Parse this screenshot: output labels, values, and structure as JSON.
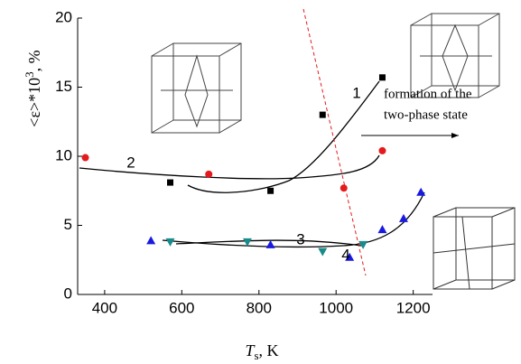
{
  "chart_data": {
    "type": "scatter",
    "x_label": {
      "main": "T",
      "sub": "s",
      "unit": ", K"
    },
    "y_label": {
      "main": "<ε>*10",
      "sup": "3",
      "unit": ", %"
    },
    "xlim": [
      330,
      1250
    ],
    "xticks": [
      400,
      600,
      800,
      1000,
      1200
    ],
    "ylim": [
      0,
      20
    ],
    "yticks": [
      0,
      5,
      10,
      15,
      20
    ],
    "series": [
      {
        "name": "1",
        "color": "#000000",
        "marker": "square",
        "x": [
          570,
          830,
          965,
          1120
        ],
        "values": [
          8.1,
          7.5,
          13.0,
          15.7
        ]
      },
      {
        "name": "2",
        "color": "#e41a1c",
        "marker": "circle",
        "x": [
          350,
          670,
          1020,
          1120
        ],
        "values": [
          9.9,
          8.7,
          7.7,
          10.4
        ]
      },
      {
        "name": "3",
        "color": "#1a1adf",
        "marker": "triangle-up",
        "x": [
          520,
          830,
          1035,
          1120,
          1175,
          1220
        ],
        "values": [
          3.9,
          3.6,
          2.7,
          4.7,
          5.5,
          7.4
        ]
      },
      {
        "name": "4",
        "color": "#1a8a8a",
        "marker": "triangle-down",
        "x": [
          570,
          770,
          965,
          1070
        ],
        "values": [
          3.8,
          3.8,
          3.1,
          3.6
        ]
      }
    ],
    "annotations": [
      "formation of the",
      "two-phase state"
    ]
  }
}
